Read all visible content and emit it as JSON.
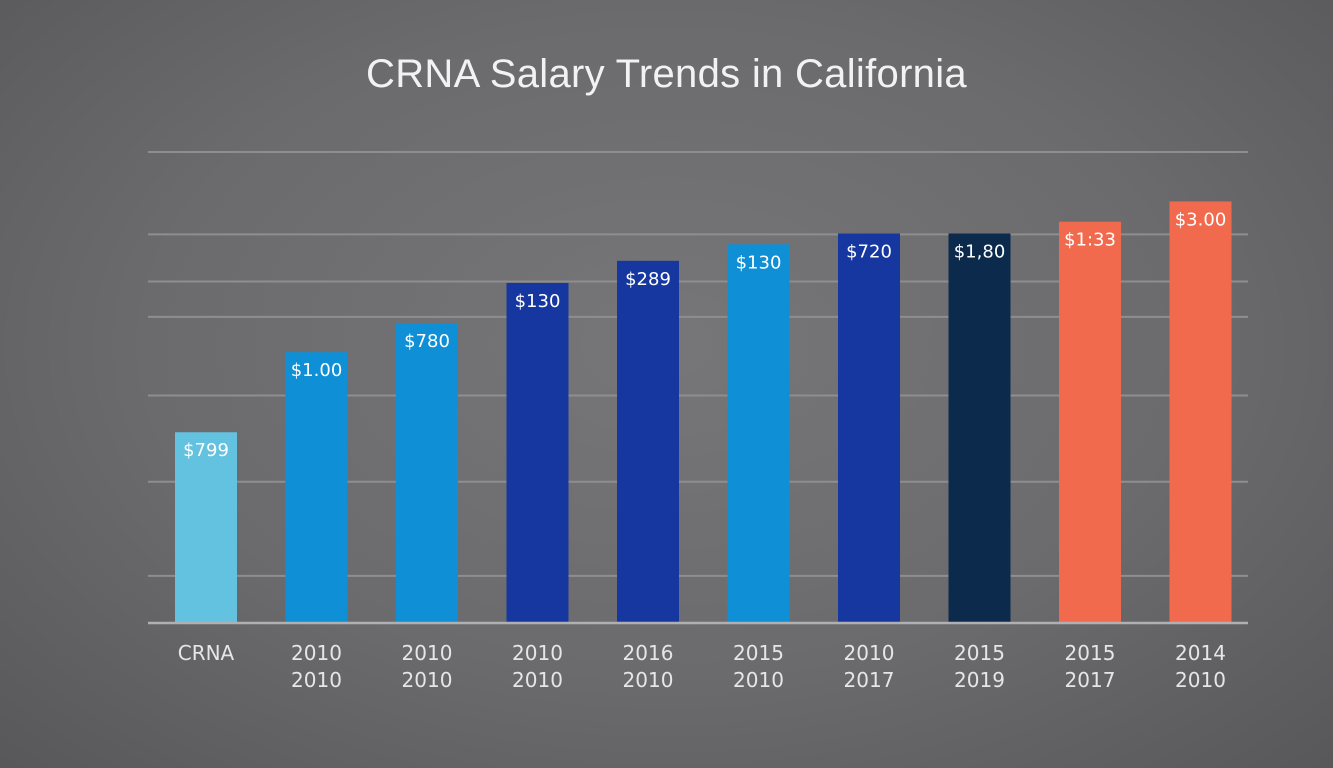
{
  "chart_data": {
    "type": "bar",
    "title": "CRNA Salary Trends in California",
    "xlabel": "",
    "ylabel": "",
    "ylim": [
      0,
      100
    ],
    "grid": true,
    "categories": [
      [
        "CRNA"
      ],
      [
        "2010",
        "2010"
      ],
      [
        "2010",
        "2010"
      ],
      [
        "2010",
        "2010"
      ],
      [
        "2016",
        "2010"
      ],
      [
        "2015",
        "2010"
      ],
      [
        "2010",
        "2017"
      ],
      [
        "2015",
        "2019"
      ],
      [
        "2015",
        "2017"
      ],
      [
        "2014",
        "2010"
      ]
    ],
    "values": [
      40.5,
      57.5,
      63.7,
      72.2,
      76.9,
      80.4,
      82.7,
      82.7,
      85.2,
      89.5
    ],
    "data_labels": [
      "$799",
      "$1.00",
      "$780",
      "$130",
      "$289",
      "$130",
      "$720",
      "$1,80",
      "$1:33",
      "$3.00"
    ],
    "colors": [
      "#62c2e0",
      "#0e8fd6",
      "#0e8fd6",
      "#1637a0",
      "#1637a0",
      "#0e8fd6",
      "#1637a0",
      "#0b2a4c",
      "#f26a4e",
      "#f26a4e"
    ],
    "gridline_values": [
      10,
      30,
      48.3,
      65,
      72.5,
      82.5
    ]
  }
}
